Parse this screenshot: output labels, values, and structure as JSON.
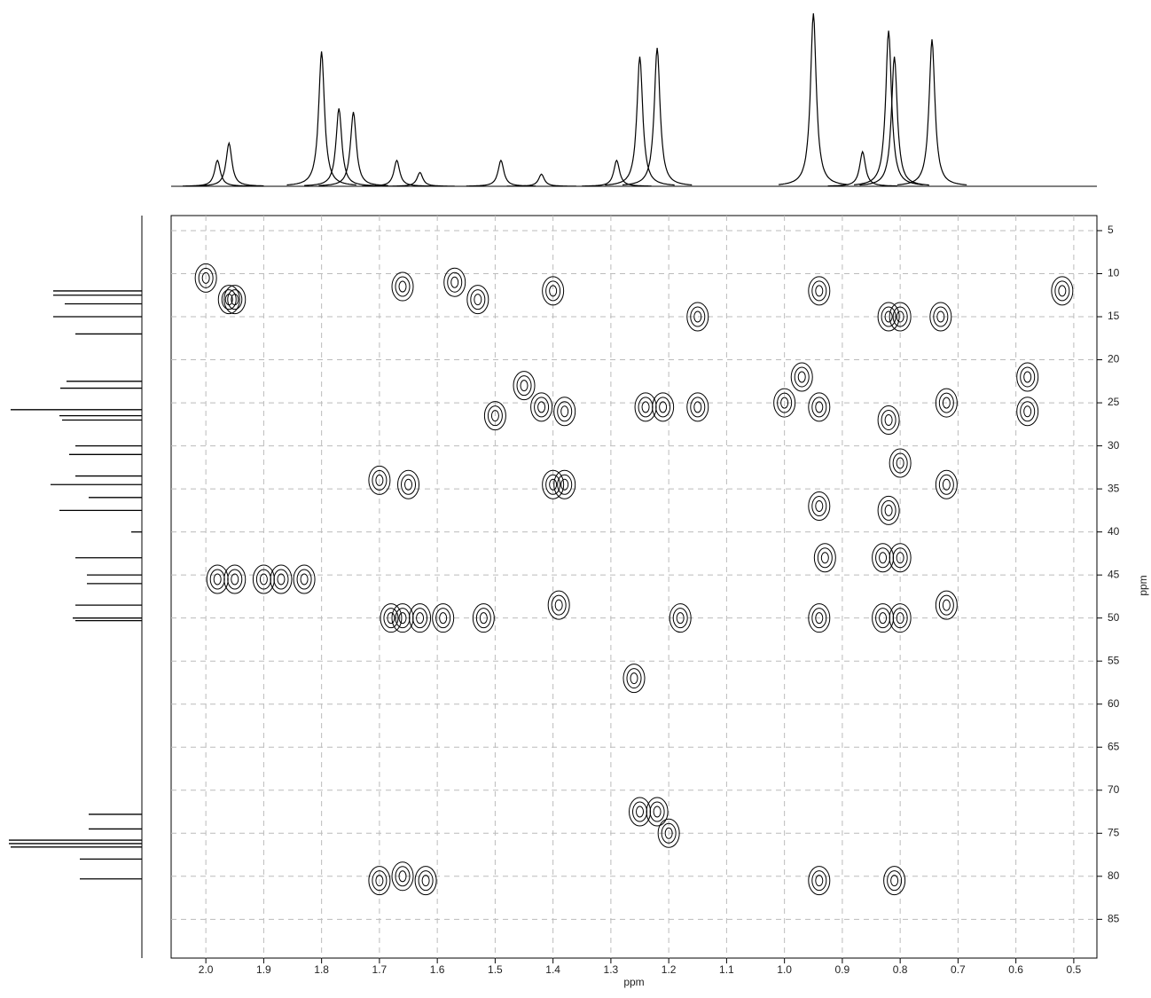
{
  "chart_data": {
    "type": "contour",
    "x_label": "ppm",
    "y_label": "ppm",
    "xlim": [
      2.06,
      0.46
    ],
    "ylim": [
      3.25,
      89.5
    ],
    "xticks": [
      {
        "value": 2.0,
        "label": "2.0"
      },
      1.9,
      1.8,
      1.7,
      1.6,
      1.5,
      1.4,
      1.3,
      1.2,
      1.1,
      {
        "value": 1.0,
        "label": "1.0"
      },
      0.9,
      0.8,
      0.7,
      0.6,
      0.5
    ],
    "yticks": [
      5,
      10,
      15,
      20,
      25,
      30,
      35,
      40,
      45,
      50,
      55,
      60,
      65,
      70,
      75,
      80,
      85
    ],
    "grid": true,
    "color": "#000000",
    "peaks": {
      "x": [
        2.0,
        1.96,
        1.95,
        1.66,
        1.57,
        1.53,
        1.4,
        1.42,
        1.38,
        1.5,
        1.45,
        1.24,
        1.21,
        1.15,
        1.15,
        0.94,
        0.94,
        0.94,
        0.93,
        0.94,
        0.97,
        1.0,
        0.82,
        0.8,
        0.73,
        0.52,
        0.58,
        0.58,
        0.82,
        0.8,
        0.82,
        0.83,
        0.8,
        0.83,
        0.8,
        0.72,
        0.72,
        0.72,
        1.4,
        1.38,
        1.65,
        1.7,
        1.98,
        1.95,
        1.9,
        1.87,
        1.83,
        1.68,
        1.66,
        1.63,
        1.59,
        1.52,
        1.39,
        1.18,
        1.26,
        1.25,
        1.22,
        1.2,
        0.94,
        0.81,
        1.7,
        1.66,
        1.62
      ],
      "y": [
        10.5,
        13,
        13,
        11.5,
        11,
        13,
        12,
        25.5,
        26,
        26.5,
        23,
        25.5,
        25.5,
        25.5,
        15,
        12,
        25.5,
        37,
        43,
        50,
        22,
        25,
        15,
        15,
        15,
        12,
        22,
        26,
        27,
        32,
        37.5,
        43,
        43,
        50,
        50,
        25,
        34.5,
        48.5,
        34.5,
        34.5,
        34.5,
        34,
        45.5,
        45.5,
        45.5,
        45.5,
        45.5,
        50,
        50,
        50,
        50,
        50,
        48.5,
        50,
        57,
        72.5,
        72.5,
        75,
        80.5,
        80.5,
        80.5,
        80,
        80.5
      ]
    },
    "x_projection": {
      "ppm": [
        1.98,
        1.96,
        1.8,
        1.77,
        1.745,
        1.67,
        1.63,
        1.49,
        1.42,
        1.29,
        1.25,
        1.22,
        0.95,
        0.865,
        0.82,
        0.81,
        0.745
      ],
      "intensity": [
        15,
        25,
        78,
        45,
        43,
        15,
        8,
        15,
        7,
        15,
        75,
        80,
        100,
        20,
        90,
        75,
        85
      ]
    },
    "y_projection": {
      "ppm": [
        12,
        12.5,
        13.5,
        15,
        17,
        22.5,
        23.3,
        25.8,
        26.5,
        27,
        30,
        31,
        33.5,
        34.5,
        36,
        37.5,
        40,
        43,
        45,
        46,
        48.5,
        50,
        50.3,
        72.8,
        74.5,
        75.8,
        76.2,
        76.6,
        78,
        80.3
      ],
      "intensity": [
        100,
        100,
        87,
        100,
        75,
        85,
        92,
        148,
        93,
        90,
        75,
        82,
        75,
        103,
        60,
        93,
        12,
        75,
        62,
        62,
        75,
        78,
        75,
        60,
        60,
        150,
        150,
        148,
        70,
        70
      ]
    }
  }
}
